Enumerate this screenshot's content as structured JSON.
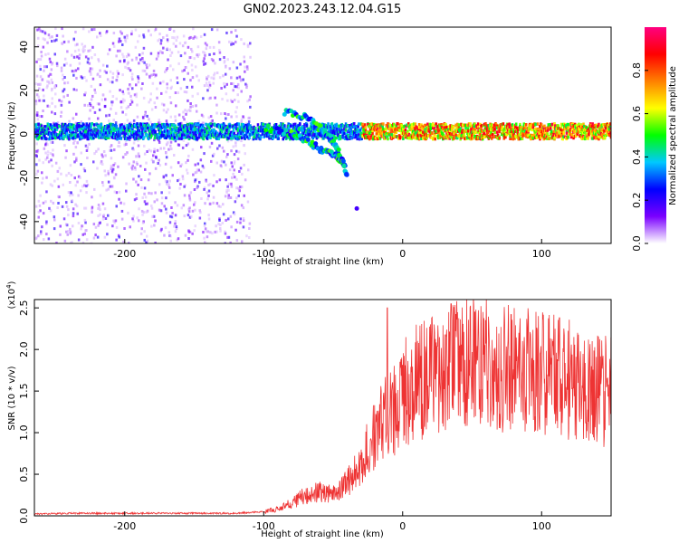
{
  "figure": {
    "title": "GN02.2023.243.12.04.G15"
  },
  "chart_data": [
    {
      "type": "heatmap",
      "name": "spectrogram",
      "xlabel": "Height of straight line (km)",
      "ylabel": "Frequency (Hz)",
      "xlim": [
        -265,
        150
      ],
      "ylim": [
        -50,
        49
      ],
      "x_ticks": [
        -200,
        -100,
        0,
        100
      ],
      "y_ticks": [
        -40,
        -20,
        0,
        20,
        40
      ],
      "colorbar": {
        "label": "Normalized spectral amplitude",
        "range": [
          0.0,
          1.0
        ],
        "ticks": [
          "0.0",
          "0.2",
          "0.4",
          "0.6",
          "0.8"
        ],
        "colormap": [
          "#ffffff",
          "#7a00ff",
          "#0000ff",
          "#00c8ff",
          "#00ff00",
          "#ffff00",
          "#ff8000",
          "#ff0000",
          "#ff0080"
        ]
      },
      "features": {
        "main_band_frequency_hz": 2,
        "dipping_branches": [
          {
            "x": [
              -100,
              -80,
              -65,
              -55,
              -48,
              -43,
              -40
            ],
            "y": [
              3,
              0,
              -5,
              -8,
              -10,
              -13,
              -18
            ]
          },
          {
            "x": [
              -85,
              -70,
              -60,
              -52,
              -46,
              -42
            ],
            "y": [
              10,
              8,
              3,
              -2,
              -8,
              -15
            ]
          }
        ],
        "isolated_point": {
          "x": -33,
          "y": -34
        }
      },
      "grid": false
    },
    {
      "type": "line",
      "name": "snr",
      "xlabel": "Height of straight line (km)",
      "ylabel": "SNR (10 * v/v)",
      "multiplier_label": "(x10",
      "multiplier_exp": "4",
      "multiplier_close": ")",
      "xlim": [
        -265,
        150
      ],
      "ylim": [
        0,
        2.6
      ],
      "x_ticks": [
        -200,
        -100,
        0,
        100
      ],
      "y_ticks": [
        "0.0",
        "0.5",
        "1.0",
        "1.5",
        "2.0",
        "2.5"
      ],
      "series": [
        {
          "color": "#ee3333",
          "envelope": {
            "x": [
              -265,
              -240,
              -200,
              -150,
              -120,
              -100,
              -90,
              -80,
              -70,
              -60,
              -55,
              -50,
              -45,
              -40,
              -35,
              -30,
              -25,
              -20,
              -15,
              -10,
              -5,
              0,
              10,
              20,
              30,
              40,
              50,
              60,
              80,
              100,
              120,
              140,
              150
            ],
            "y": [
              0.02,
              0.03,
              0.03,
              0.03,
              0.03,
              0.05,
              0.08,
              0.15,
              0.25,
              0.3,
              0.28,
              0.25,
              0.3,
              0.4,
              0.5,
              0.6,
              0.8,
              1.0,
              1.1,
              1.2,
              1.3,
              1.45,
              1.6,
              1.7,
              1.75,
              1.8,
              1.85,
              1.8,
              1.75,
              1.7,
              1.65,
              1.5,
              1.5
            ]
          },
          "peaks": [
            {
              "x": -11,
              "y": 2.5
            },
            {
              "x": 35,
              "y": 2.55
            },
            {
              "x": 52,
              "y": 2.45
            },
            {
              "x": 78,
              "y": 2.42
            },
            {
              "x": 113,
              "y": 2.38
            }
          ]
        }
      ],
      "grid": false
    }
  ]
}
